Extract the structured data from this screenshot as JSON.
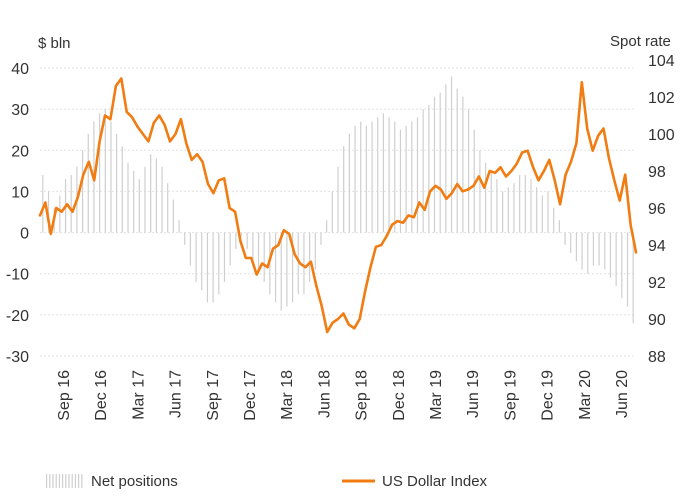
{
  "chart_data": {
    "type": "bar+line",
    "left_axis": {
      "unit": "$ bln",
      "ylim": [
        -30,
        40
      ],
      "ticks": [
        "40",
        "30",
        "20",
        "10",
        "0",
        "-10",
        "-20",
        "-30"
      ],
      "tick_values": [
        40,
        30,
        20,
        10,
        0,
        -10,
        -20,
        -30
      ]
    },
    "right_axis": {
      "unit": "Spot rate",
      "ylim": [
        88,
        104
      ],
      "ticks": [
        "104",
        "102",
        "100",
        "98",
        "96",
        "94",
        "92",
        "90",
        "88"
      ],
      "tick_values": [
        104,
        102,
        100,
        98,
        96,
        94,
        92,
        90,
        88
      ]
    },
    "x_axis": {
      "labels": [
        "Sep 16",
        "Dec 16",
        "Mar 17",
        "Jun 17",
        "Sep 17",
        "Dec 17",
        "Mar 18",
        "Jun 18",
        "Sep 18",
        "Dec 18",
        "Mar 19",
        "Jun 19",
        "Sep 19",
        "Dec 19",
        "Mar 20",
        "Jun 20"
      ],
      "start": "Aug 2016",
      "end": "Sep 2020"
    },
    "grid": true,
    "legend": {
      "position": "bottom",
      "items": [
        {
          "label": "Net positions",
          "style": "bars",
          "color": "#cfcfcf"
        },
        {
          "label": "US Dollar Index",
          "style": "line",
          "color": "#f07c12"
        }
      ]
    },
    "series": [
      {
        "name": "Net positions",
        "axis": "left",
        "style": "bar",
        "color": "#cfcfcf",
        "values": [
          14,
          10,
          6,
          9,
          13,
          14,
          16,
          20,
          24,
          27,
          29,
          30,
          27,
          24,
          21,
          17,
          15,
          13,
          16,
          19,
          18,
          16,
          12,
          8,
          3,
          -3,
          -8,
          -12,
          -14,
          -17,
          -17,
          -15,
          -12,
          -8,
          -4,
          -1,
          -4,
          -8,
          -10,
          -12,
          -15,
          -17,
          -19,
          -18,
          -17,
          -15,
          -15,
          -12,
          -9,
          -3,
          3,
          10,
          16,
          21,
          24,
          26,
          27,
          26,
          27,
          28,
          29,
          28,
          27,
          25,
          26,
          27,
          28,
          30,
          31,
          33,
          34,
          36,
          38,
          35,
          33,
          30,
          25,
          20,
          17,
          15,
          13,
          10,
          11,
          12,
          14,
          14,
          13,
          11,
          9,
          10,
          6,
          3,
          -3,
          -5,
          -7,
          -9,
          -10,
          -8,
          -8,
          -9,
          -11,
          -13,
          -16,
          -18,
          -22
        ]
      },
      {
        "name": "US Dollar Index",
        "axis": "right",
        "style": "line",
        "color": "#f07c12",
        "values": [
          95.6,
          96.3,
          94.6,
          96.0,
          95.8,
          96.2,
          95.8,
          96.6,
          97.8,
          98.5,
          97.5,
          99.6,
          101.0,
          100.8,
          102.6,
          103.0,
          101.2,
          100.9,
          100.4,
          100.0,
          99.6,
          100.6,
          101.0,
          100.5,
          99.6,
          100.0,
          100.8,
          99.5,
          98.6,
          98.9,
          98.5,
          97.3,
          96.8,
          97.5,
          97.6,
          96.0,
          95.8,
          94.2,
          93.3,
          93.3,
          92.4,
          93.0,
          92.8,
          93.8,
          94.0,
          94.8,
          94.6,
          93.5,
          93.0,
          92.8,
          93.1,
          91.8,
          90.7,
          89.3,
          89.8,
          90.0,
          90.3,
          89.7,
          89.5,
          90.0,
          91.5,
          92.8,
          93.9,
          94.0,
          94.5,
          95.1,
          95.3,
          95.2,
          95.6,
          95.5,
          96.3,
          95.9,
          96.9,
          97.2,
          97.0,
          96.5,
          96.8,
          97.3,
          96.9,
          97.0,
          97.2,
          97.7,
          97.1,
          98.0,
          97.9,
          98.2,
          97.7,
          98.0,
          98.4,
          99.0,
          99.1,
          98.2,
          97.5,
          98.0,
          98.6,
          97.5,
          96.2,
          97.8,
          98.5,
          99.5,
          102.8,
          100.3,
          99.1,
          99.9,
          100.3,
          98.7,
          97.5,
          96.4,
          97.8,
          95.1,
          93.6
        ]
      }
    ]
  }
}
